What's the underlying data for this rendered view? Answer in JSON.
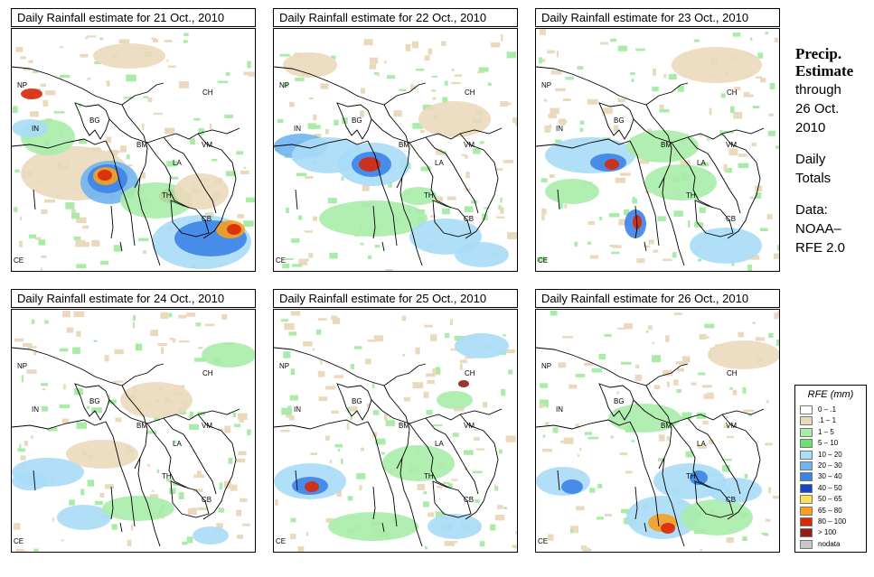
{
  "panels": [
    {
      "title": "Daily Rainfall estimate for  21 Oct., 2010"
    },
    {
      "title": "Daily Rainfall estimate for  22 Oct., 2010"
    },
    {
      "title": "Daily Rainfall estimate for  23 Oct., 2010"
    },
    {
      "title": "Daily Rainfall estimate for  24 Oct., 2010"
    },
    {
      "title": "Daily Rainfall estimate for  25 Oct., 2010"
    },
    {
      "title": "Daily Rainfall estimate for  26 Oct., 2010"
    }
  ],
  "country_labels": {
    "np": "NP",
    "ch": "CH",
    "in": "IN",
    "bg": "BG",
    "bm": "BM",
    "vm": "VM",
    "la": "LA",
    "th": "TH",
    "cb": "CB",
    "ce": "CE"
  },
  "sidebar": {
    "title_line1": "Precip.",
    "title_line2": "Estimate",
    "through_line1": "through",
    "through_line2": "26 Oct.",
    "through_line3": "2010",
    "daily_line1": "Daily",
    "daily_line2": "Totals",
    "data_line1": "Data:",
    "data_line2": "NOAA–",
    "data_line3": "RFE 2.0"
  },
  "legend": {
    "title": "RFE (mm)",
    "items": [
      {
        "label": "0 – .1",
        "color": "#ffffff"
      },
      {
        "label": ".1 – 1",
        "color": "#ead9bd"
      },
      {
        "label": "1 – 5",
        "color": "#a8eca8"
      },
      {
        "label": "5 – 10",
        "color": "#6fdf6f"
      },
      {
        "label": "10 – 20",
        "color": "#a9dcf7"
      },
      {
        "label": "20 – 30",
        "color": "#6fb4ef"
      },
      {
        "label": "30 – 40",
        "color": "#3c83e6"
      },
      {
        "label": "40 – 50",
        "color": "#1546c8"
      },
      {
        "label": "50 – 65",
        "color": "#fbe058"
      },
      {
        "label": "65 – 80",
        "color": "#f7a020"
      },
      {
        "label": "80 – 100",
        "color": "#d8280a"
      },
      {
        "label": "> 100",
        "color": "#922018"
      },
      {
        "label": "nodata",
        "color": "#c8c8c8"
      }
    ]
  }
}
